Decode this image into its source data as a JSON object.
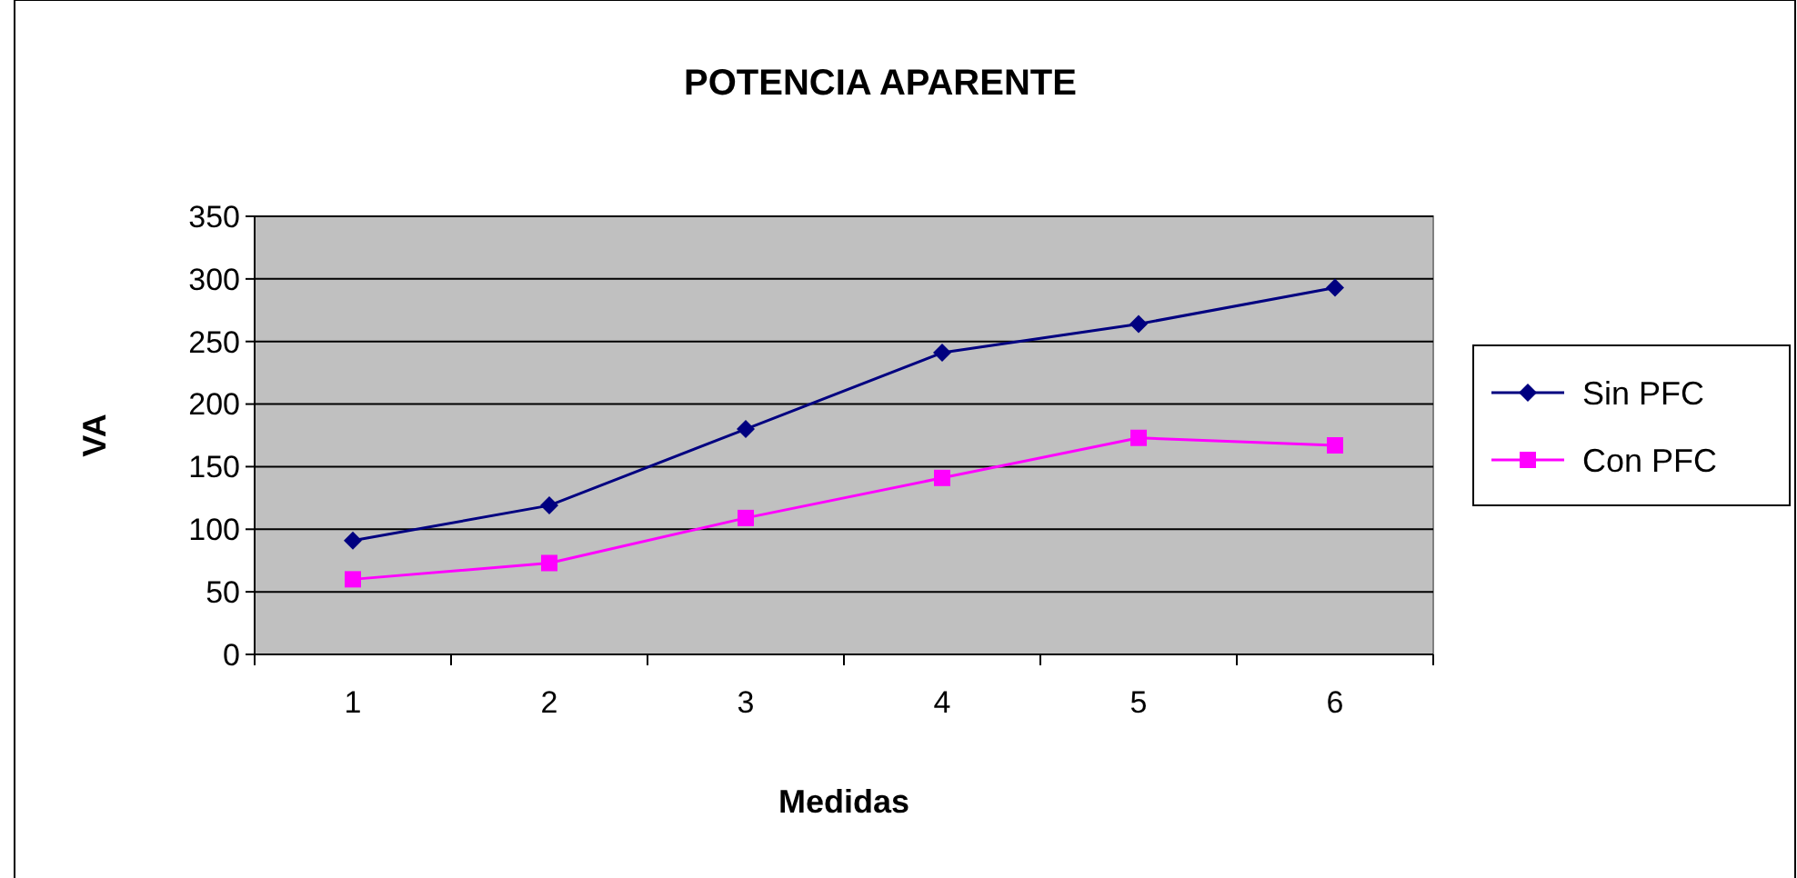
{
  "chart_data": {
    "type": "line",
    "title": "POTENCIA APARENTE",
    "xlabel": "Medidas",
    "ylabel": "VA",
    "categories": [
      "1",
      "2",
      "3",
      "4",
      "5",
      "6"
    ],
    "series": [
      {
        "name": "Sin PFC",
        "color": "#000080",
        "marker": "diamond",
        "values": [
          91,
          119,
          180,
          241,
          264,
          293
        ]
      },
      {
        "name": "Con PFC",
        "color": "#ff00ff",
        "marker": "square",
        "values": [
          60,
          73,
          109,
          141,
          173,
          167
        ]
      }
    ],
    "ylim": [
      0,
      350
    ],
    "yticks": [
      0,
      50,
      100,
      150,
      200,
      250,
      300,
      350
    ],
    "grid": "y",
    "legend": "right"
  }
}
